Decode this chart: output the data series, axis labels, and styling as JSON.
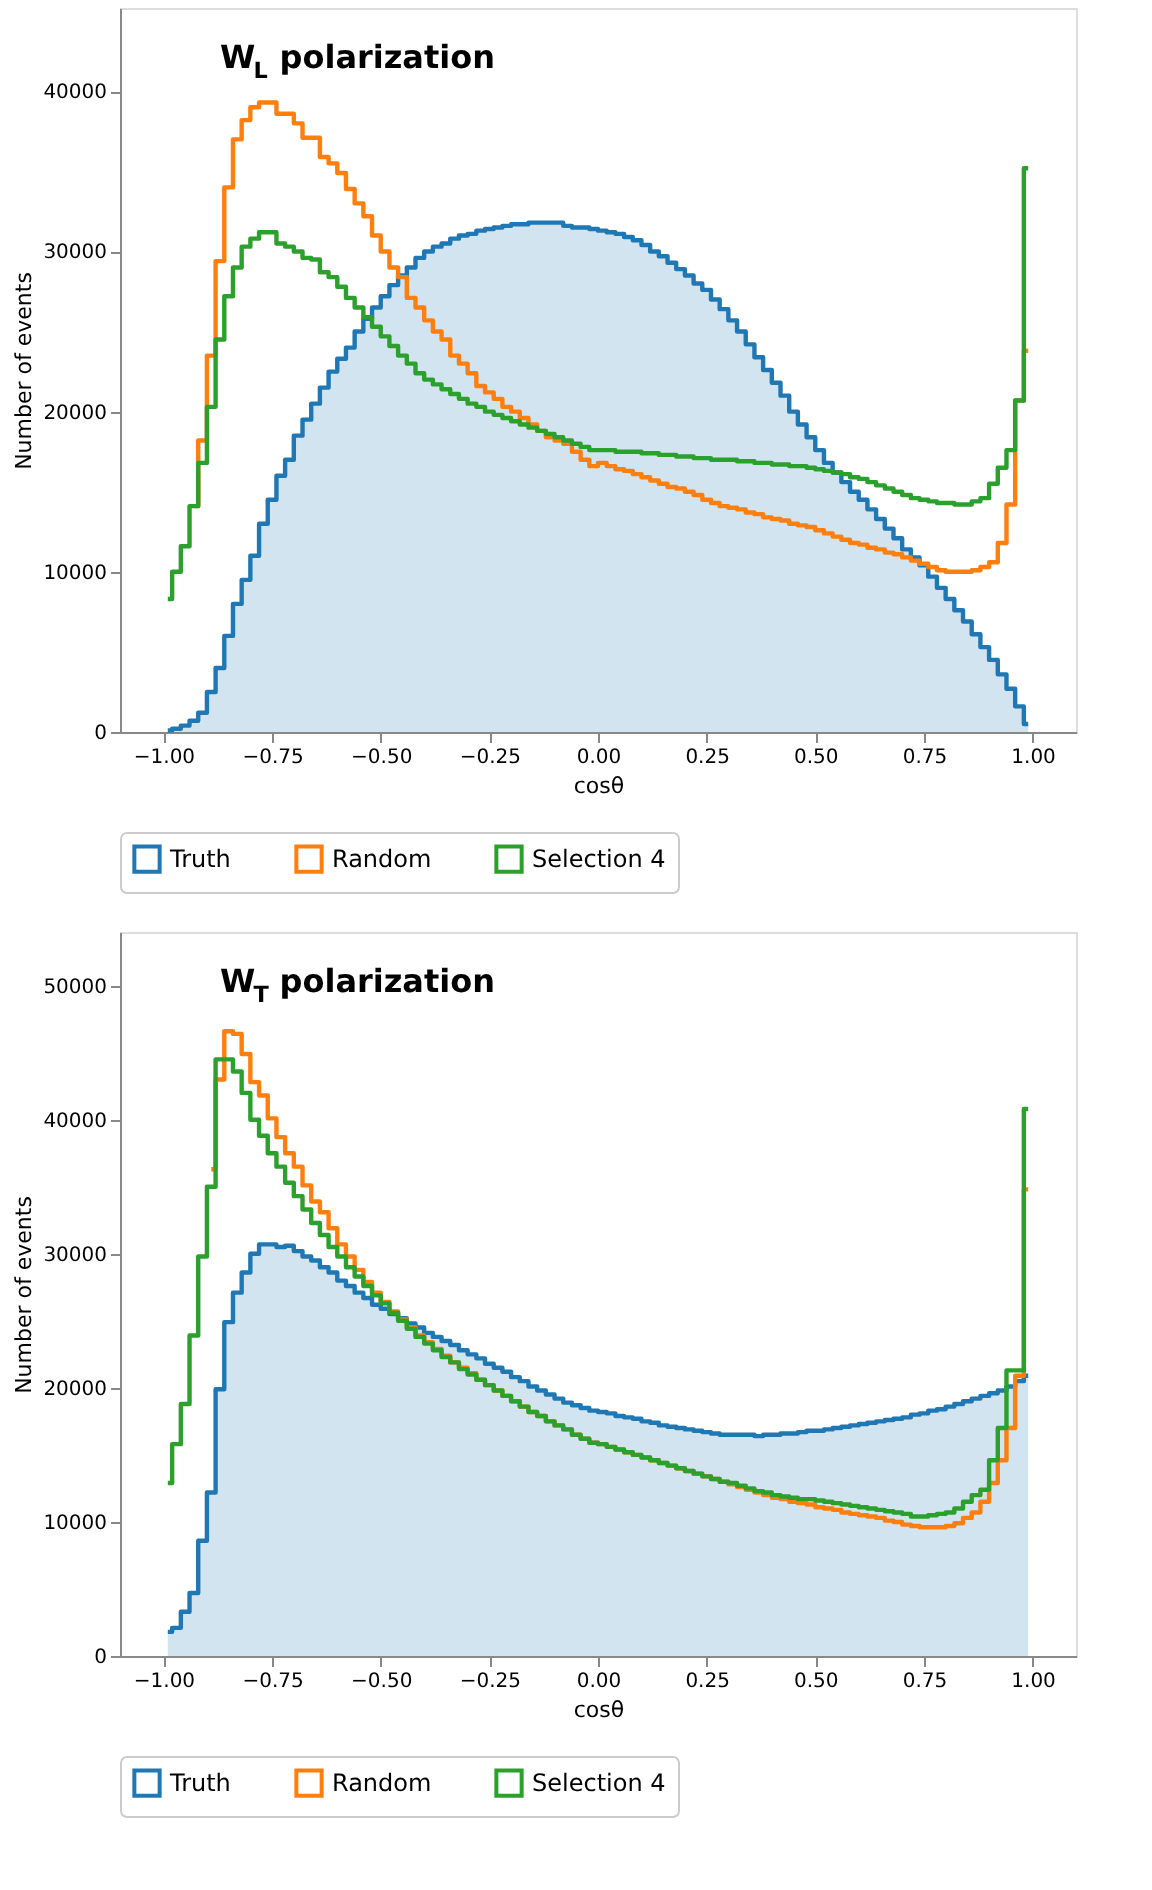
{
  "chart_data": [
    {
      "type": "step",
      "title": "W$_{L}$ polarization",
      "xlabel": "cosθ",
      "ylabel": "Number of events",
      "legend": "bottom",
      "grid": false,
      "x": [
        -0.99,
        -0.97,
        -0.95,
        -0.93,
        -0.91,
        -0.89,
        -0.87,
        -0.85,
        -0.83,
        -0.81,
        -0.79,
        -0.77,
        -0.75,
        -0.73,
        -0.71,
        -0.69,
        -0.67,
        -0.65,
        -0.63,
        -0.61,
        -0.59,
        -0.57,
        -0.55,
        -0.53,
        -0.51,
        -0.49,
        -0.47,
        -0.45,
        -0.43,
        -0.41,
        -0.39,
        -0.37,
        -0.35,
        -0.33,
        -0.31,
        -0.29,
        -0.27,
        -0.25,
        -0.23,
        -0.21,
        -0.19,
        -0.17,
        -0.15,
        -0.13,
        -0.11,
        -0.09,
        -0.07,
        -0.05,
        -0.03,
        -0.01,
        0.01,
        0.03,
        0.05,
        0.07,
        0.09,
        0.11,
        0.13,
        0.15,
        0.17,
        0.19,
        0.21,
        0.23,
        0.25,
        0.27,
        0.29,
        0.31,
        0.33,
        0.35,
        0.37,
        0.39,
        0.41,
        0.43,
        0.45,
        0.47,
        0.49,
        0.51,
        0.53,
        0.55,
        0.57,
        0.59,
        0.61,
        0.63,
        0.65,
        0.67,
        0.69,
        0.71,
        0.73,
        0.75,
        0.77,
        0.79,
        0.81,
        0.83,
        0.85,
        0.87,
        0.89,
        0.91,
        0.93,
        0.95,
        0.97,
        0.99
      ],
      "xlim": [
        -1.1,
        1.1
      ],
      "xticks": [
        {
          "value": -1,
          "label": "−1.00"
        },
        {
          "value": -0.75,
          "label": "−0.75"
        },
        {
          "value": -0.5,
          "label": "−0.50"
        },
        {
          "value": -0.25,
          "label": "−0.25"
        },
        {
          "value": 0,
          "label": "0.00"
        },
        {
          "value": 0.25,
          "label": "0.25"
        },
        {
          "value": 0.5,
          "label": "0.50"
        },
        {
          "value": 0.75,
          "label": "0.75"
        },
        {
          "value": 1,
          "label": "1.00"
        }
      ],
      "ylim": [
        0,
        45200
      ],
      "yticks": [
        0,
        10000,
        20000,
        30000,
        40000
      ],
      "series": [
        {
          "name": "Truth",
          "type": "area",
          "color": "#1f77b4",
          "values": [
            100,
            200,
            400,
            700,
            1200,
            2500,
            4000,
            6000,
            8000,
            9500,
            11000,
            13000,
            14500,
            16000,
            17000,
            18500,
            19500,
            20500,
            21500,
            22500,
            23300,
            24000,
            25000,
            25800,
            26500,
            27200,
            27900,
            28500,
            29000,
            29600,
            30000,
            30300,
            30500,
            30800,
            31000,
            31100,
            31300,
            31400,
            31500,
            31600,
            31700,
            31700,
            31800,
            31800,
            31800,
            31800,
            31600,
            31500,
            31500,
            31400,
            31300,
            31200,
            31100,
            30900,
            30700,
            30400,
            30000,
            29700,
            29300,
            28900,
            28500,
            28000,
            27600,
            27000,
            26400,
            25700,
            25000,
            24200,
            23400,
            22600,
            21800,
            21000,
            20000,
            19200,
            18400,
            17600,
            16800,
            16200,
            15600,
            15000,
            14500,
            13900,
            13300,
            12700,
            12100,
            11400,
            10900,
            10400,
            9700,
            9000,
            8300,
            7600,
            6900,
            6100,
            5300,
            4500,
            3600,
            2700,
            1600,
            500
          ]
        },
        {
          "name": "Random",
          "type": "step",
          "color": "#ff7f0e",
          "values": [
            null,
            null,
            null,
            14100,
            18200,
            23500,
            29400,
            34000,
            37000,
            38200,
            39000,
            39300,
            39300,
            38600,
            38600,
            38000,
            37100,
            37100,
            35900,
            35500,
            34900,
            33900,
            33000,
            32200,
            31000,
            30000,
            29000,
            28400,
            27100,
            26500,
            25700,
            25000,
            24500,
            23500,
            23000,
            22400,
            21600,
            21200,
            20800,
            20300,
            20000,
            19600,
            19200,
            18800,
            18400,
            18200,
            18000,
            17500,
            17000,
            16600,
            16800,
            16600,
            16400,
            16300,
            16100,
            15900,
            15700,
            15500,
            15300,
            15200,
            15000,
            14800,
            14500,
            14300,
            14100,
            14000,
            13900,
            13700,
            13600,
            13400,
            13300,
            13200,
            13000,
            12900,
            12800,
            12600,
            12400,
            12200,
            12000,
            11800,
            11700,
            11500,
            11400,
            11200,
            11100,
            10900,
            10700,
            10500,
            10300,
            10100,
            10000,
            10000,
            10000,
            10100,
            10300,
            10600,
            11800,
            14200,
            20700,
            23800
          ]
        },
        {
          "name": "Selection 4",
          "type": "step",
          "color": "#2ca02c",
          "values": [
            8300,
            10000,
            11600,
            14100,
            16800,
            20300,
            24500,
            27200,
            29000,
            30300,
            30800,
            31200,
            31200,
            30500,
            30300,
            30000,
            29600,
            29500,
            28700,
            28400,
            27800,
            27100,
            26500,
            25900,
            25300,
            24700,
            24100,
            23500,
            23000,
            22400,
            22000,
            21700,
            21400,
            21100,
            20800,
            20500,
            20300,
            20000,
            19800,
            19600,
            19400,
            19200,
            19000,
            18800,
            18600,
            18400,
            18200,
            18000,
            17800,
            17600,
            17600,
            17600,
            17500,
            17500,
            17500,
            17400,
            17400,
            17300,
            17300,
            17200,
            17200,
            17100,
            17100,
            17000,
            17000,
            17000,
            16900,
            16900,
            16800,
            16800,
            16700,
            16700,
            16600,
            16600,
            16500,
            16400,
            16300,
            16200,
            16100,
            15900,
            15800,
            15600,
            15400,
            15200,
            15000,
            14800,
            14600,
            14500,
            14400,
            14300,
            14300,
            14200,
            14200,
            14400,
            14600,
            15500,
            16500,
            17600,
            20700,
            35200
          ]
        }
      ]
    },
    {
      "type": "step",
      "title": "W$_{T}$ polarization",
      "xlabel": "cosθ",
      "ylabel": "Number of events",
      "legend": "bottom",
      "grid": false,
      "x": [
        -0.99,
        -0.97,
        -0.95,
        -0.93,
        -0.91,
        -0.89,
        -0.87,
        -0.85,
        -0.83,
        -0.81,
        -0.79,
        -0.77,
        -0.75,
        -0.73,
        -0.71,
        -0.69,
        -0.67,
        -0.65,
        -0.63,
        -0.61,
        -0.59,
        -0.57,
        -0.55,
        -0.53,
        -0.51,
        -0.49,
        -0.47,
        -0.45,
        -0.43,
        -0.41,
        -0.39,
        -0.37,
        -0.35,
        -0.33,
        -0.31,
        -0.29,
        -0.27,
        -0.25,
        -0.23,
        -0.21,
        -0.19,
        -0.17,
        -0.15,
        -0.13,
        -0.11,
        -0.09,
        -0.07,
        -0.05,
        -0.03,
        -0.01,
        0.01,
        0.03,
        0.05,
        0.07,
        0.09,
        0.11,
        0.13,
        0.15,
        0.17,
        0.19,
        0.21,
        0.23,
        0.25,
        0.27,
        0.29,
        0.31,
        0.33,
        0.35,
        0.37,
        0.39,
        0.41,
        0.43,
        0.45,
        0.47,
        0.49,
        0.51,
        0.53,
        0.55,
        0.57,
        0.59,
        0.61,
        0.63,
        0.65,
        0.67,
        0.69,
        0.71,
        0.73,
        0.75,
        0.77,
        0.79,
        0.81,
        0.83,
        0.85,
        0.87,
        0.89,
        0.91,
        0.93,
        0.95,
        0.97,
        0.99
      ],
      "xlim": [
        -1.1,
        1.1
      ],
      "xticks": [
        {
          "value": -1,
          "label": "−1.00"
        },
        {
          "value": -0.75,
          "label": "−0.75"
        },
        {
          "value": -0.5,
          "label": "−0.50"
        },
        {
          "value": -0.25,
          "label": "−0.25"
        },
        {
          "value": 0,
          "label": "0.00"
        },
        {
          "value": 0.25,
          "label": "0.25"
        },
        {
          "value": 0.5,
          "label": "0.50"
        },
        {
          "value": 0.75,
          "label": "0.75"
        },
        {
          "value": 1,
          "label": "1.00"
        }
      ],
      "ylim": [
        0,
        54000
      ],
      "yticks": [
        0,
        10000,
        20000,
        30000,
        40000,
        50000
      ],
      "series": [
        {
          "name": "Truth",
          "type": "area",
          "color": "#1f77b4",
          "values": [
            1800,
            2100,
            3300,
            4700,
            8600,
            12200,
            19900,
            24900,
            27100,
            28600,
            30000,
            30700,
            30700,
            30500,
            30600,
            30200,
            29800,
            29500,
            29000,
            28600,
            28000,
            27600,
            27100,
            26700,
            26200,
            25900,
            25500,
            25200,
            24800,
            24500,
            24100,
            23800,
            23500,
            23200,
            22800,
            22500,
            22200,
            21800,
            21500,
            21200,
            20800,
            20500,
            20100,
            19800,
            19500,
            19200,
            18900,
            18700,
            18500,
            18300,
            18200,
            18100,
            17900,
            17800,
            17700,
            17500,
            17400,
            17200,
            17100,
            17000,
            16900,
            16800,
            16700,
            16600,
            16500,
            16500,
            16500,
            16500,
            16400,
            16500,
            16500,
            16600,
            16600,
            16700,
            16800,
            16800,
            16900,
            17000,
            17100,
            17200,
            17300,
            17400,
            17500,
            17600,
            17700,
            17800,
            18000,
            18100,
            18300,
            18400,
            18600,
            18800,
            19000,
            19200,
            19400,
            19600,
            19800,
            20100,
            20500,
            20900
          ]
        },
        {
          "name": "Random",
          "type": "step",
          "color": "#ff7f0e",
          "values": [
            null,
            null,
            null,
            null,
            null,
            36300,
            43000,
            46600,
            46400,
            44900,
            42800,
            41800,
            40100,
            38700,
            37500,
            36500,
            35100,
            33900,
            33100,
            31900,
            30700,
            29800,
            28800,
            27900,
            27100,
            26400,
            25700,
            25100,
            24500,
            23900,
            23400,
            22900,
            22400,
            21900,
            21500,
            21100,
            20600,
            20200,
            19800,
            19400,
            19000,
            18600,
            18200,
            17900,
            17500,
            17200,
            16900,
            16500,
            16200,
            15900,
            15800,
            15600,
            15400,
            15200,
            15000,
            14800,
            14600,
            14400,
            14200,
            14000,
            13800,
            13600,
            13400,
            13200,
            13000,
            12800,
            12600,
            12400,
            12200,
            12000,
            11800,
            11700,
            11500,
            11400,
            11300,
            11100,
            11000,
            10900,
            10700,
            10600,
            10500,
            10400,
            10300,
            10100,
            10000,
            9800,
            9700,
            9600,
            9600,
            9600,
            9700,
            9900,
            10300,
            10700,
            11500,
            12900,
            14600,
            17000,
            20900,
            34800
          ]
        },
        {
          "name": "Selection 4",
          "type": "step",
          "color": "#2ca02c",
          "values": [
            12900,
            15800,
            18800,
            23900,
            29800,
            35000,
            44500,
            44500,
            43600,
            42000,
            40000,
            38800,
            37500,
            36500,
            35300,
            34300,
            33300,
            32300,
            31400,
            30500,
            29800,
            29000,
            28300,
            27600,
            26900,
            26300,
            25600,
            25000,
            24400,
            23800,
            23300,
            22800,
            22300,
            21900,
            21400,
            21000,
            20600,
            20200,
            19800,
            19400,
            19000,
            18600,
            18200,
            17900,
            17500,
            17200,
            16900,
            16500,
            16200,
            15900,
            15800,
            15600,
            15400,
            15200,
            15000,
            14800,
            14600,
            14400,
            14200,
            14000,
            13800,
            13600,
            13400,
            13200,
            13000,
            12900,
            12700,
            12500,
            12300,
            12200,
            12000,
            11900,
            11800,
            11700,
            11700,
            11600,
            11500,
            11400,
            11300,
            11200,
            11100,
            11000,
            10900,
            10800,
            10700,
            10600,
            10400,
            10400,
            10500,
            10600,
            10700,
            11000,
            11500,
            12000,
            12400,
            14600,
            17000,
            21300,
            21300,
            40800
          ]
        }
      ]
    }
  ]
}
